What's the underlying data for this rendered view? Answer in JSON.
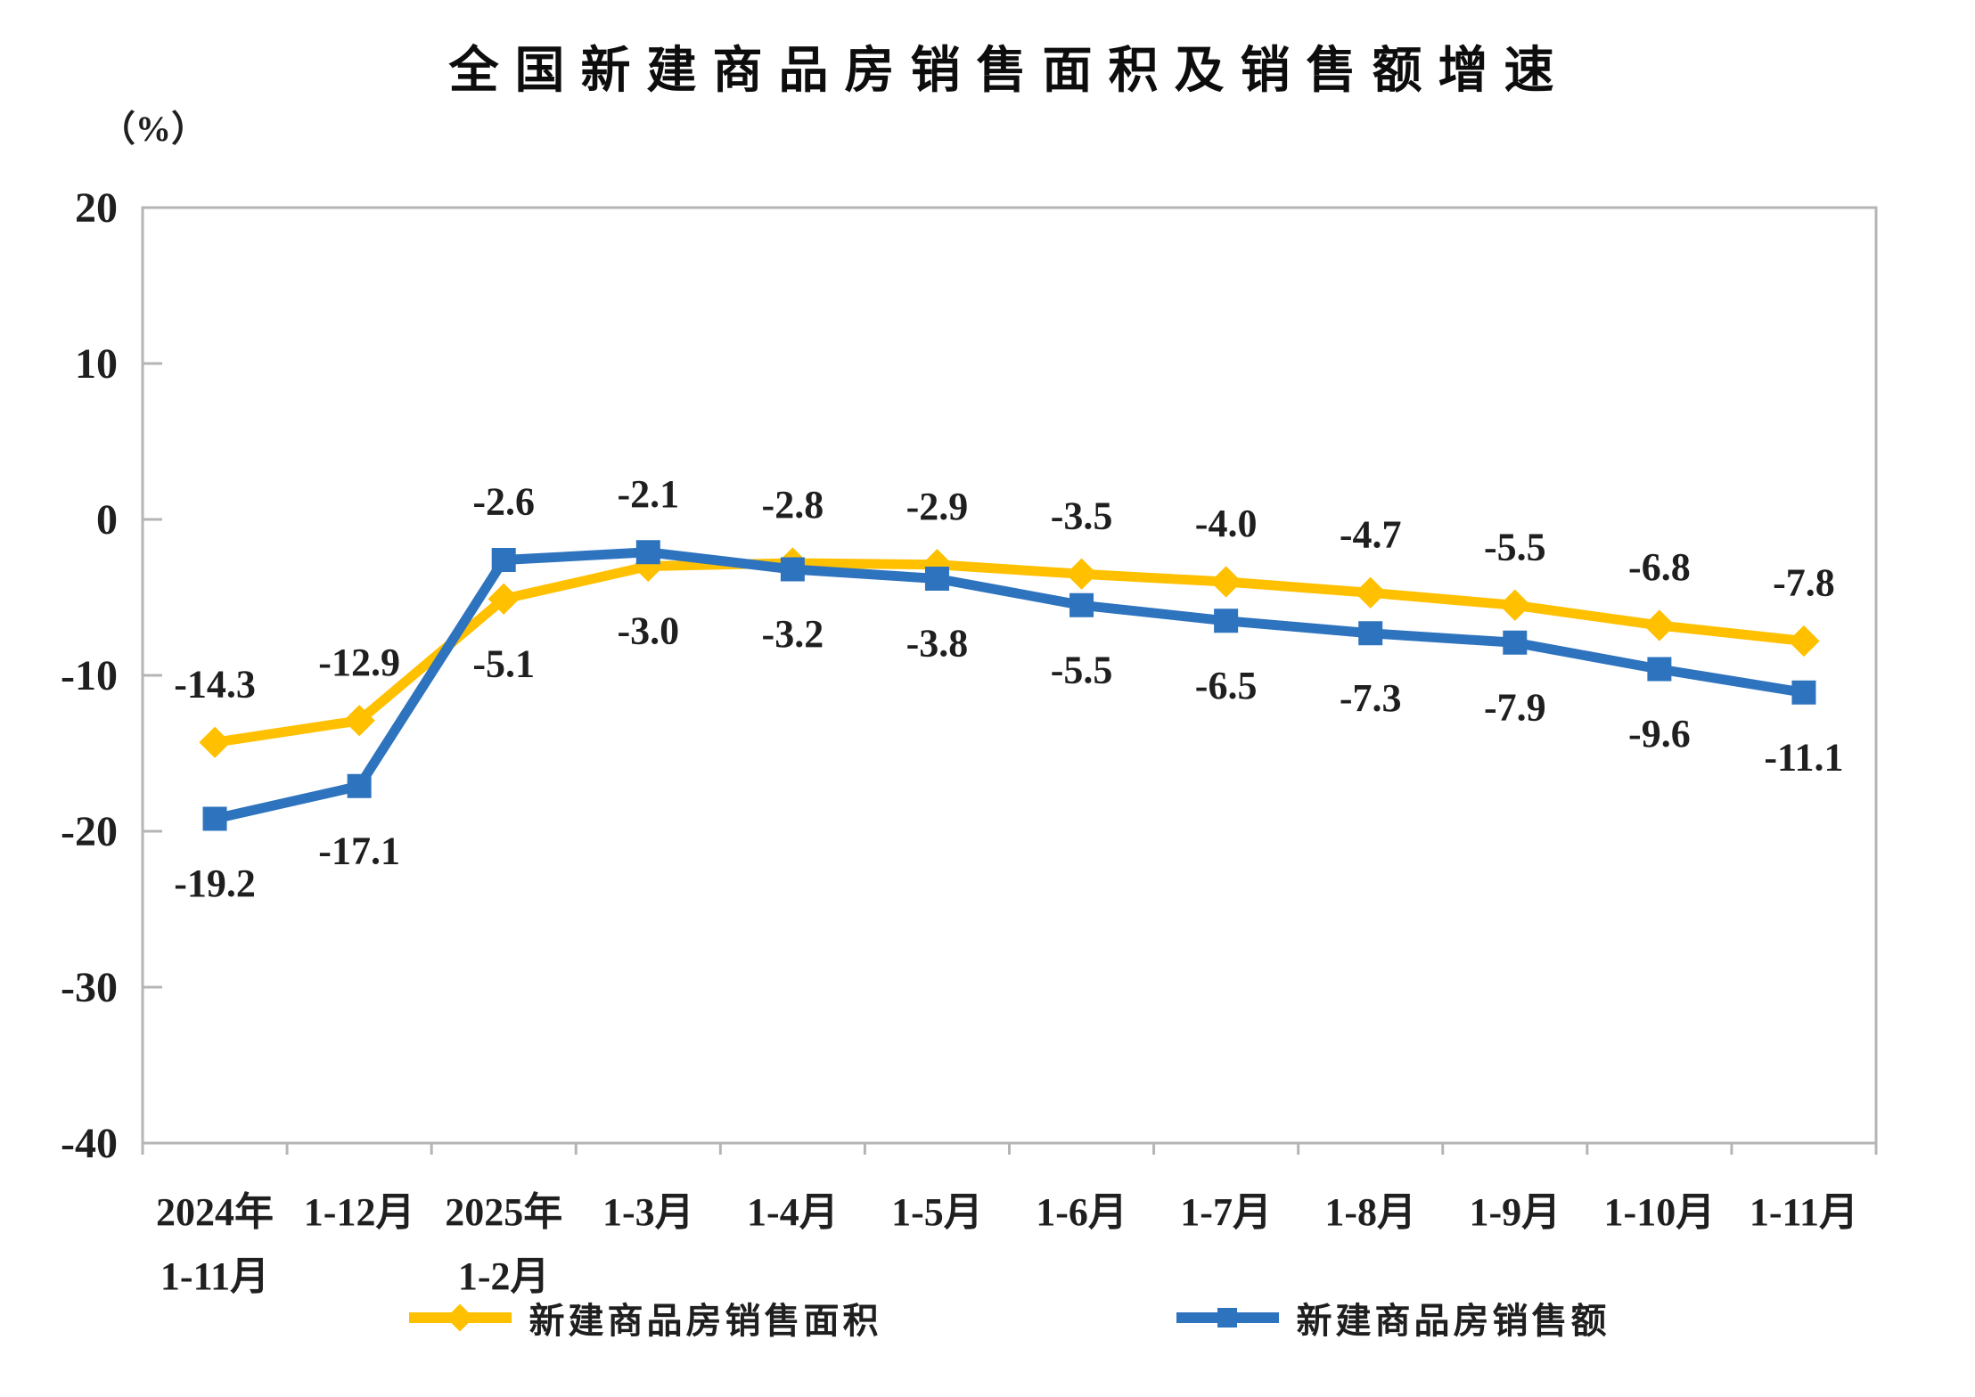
{
  "title": "全国新建商品房销售面积及销售额增速",
  "unit_label": "（%）",
  "colors": {
    "sales_area": "#FFC000",
    "sales_value": "#2E73BE",
    "axis": "#b5b5b5",
    "text": "#1f1f1f"
  },
  "chart_data": {
    "type": "line",
    "title": "全国新建商品房销售面积及销售额增速",
    "ylabel": "（%）",
    "xlabel": "",
    "ylim": [
      -40,
      20
    ],
    "y_ticks": [
      20,
      10,
      0,
      -10,
      -20,
      -30,
      -40
    ],
    "y_tick_labels": [
      "20",
      "10",
      "0",
      "-10",
      "-20",
      "-30",
      "-40"
    ],
    "grid": "off",
    "legend_position": "bottom",
    "categories": [
      [
        "2024年",
        "1-11月"
      ],
      [
        "1-12月"
      ],
      [
        "2025年",
        "1-2月"
      ],
      [
        "1-3月"
      ],
      [
        "1-4月"
      ],
      [
        "1-5月"
      ],
      [
        "1-6月"
      ],
      [
        "1-7月"
      ],
      [
        "1-8月"
      ],
      [
        "1-9月"
      ],
      [
        "1-10月"
      ],
      [
        "1-11月"
      ]
    ],
    "series": [
      {
        "name": "新建商品房销售面积",
        "color": "#FFC000",
        "marker": "diamond",
        "values": [
          -14.3,
          -12.9,
          -5.1,
          -3.0,
          -2.8,
          -2.9,
          -3.5,
          -4.0,
          -4.7,
          -5.5,
          -6.8,
          -7.8
        ],
        "labels": [
          "-14.3",
          "-12.9",
          "-5.1",
          "-3.0",
          "-2.8",
          "-2.9",
          "-3.5",
          "-4.0",
          "-4.7",
          "-5.5",
          "-6.8",
          "-7.8"
        ],
        "label_side": [
          "above",
          "above",
          "below",
          "below",
          "above",
          "above",
          "above",
          "above",
          "above",
          "above",
          "above",
          "above"
        ]
      },
      {
        "name": "新建商品房销售额",
        "color": "#2E73BE",
        "marker": "square",
        "values": [
          -19.2,
          -17.1,
          -2.6,
          -2.1,
          -3.2,
          -3.8,
          -5.5,
          -6.5,
          -7.3,
          -7.9,
          -9.6,
          -11.1
        ],
        "labels": [
          "-19.2",
          "-17.1",
          "-2.6",
          "-2.1",
          "-3.2",
          "-3.8",
          "-5.5",
          "-6.5",
          "-7.3",
          "-7.9",
          "-9.6",
          "-11.1"
        ],
        "label_side": [
          "below",
          "below",
          "above",
          "above",
          "below",
          "below",
          "below",
          "below",
          "below",
          "below",
          "below",
          "below"
        ]
      }
    ]
  }
}
